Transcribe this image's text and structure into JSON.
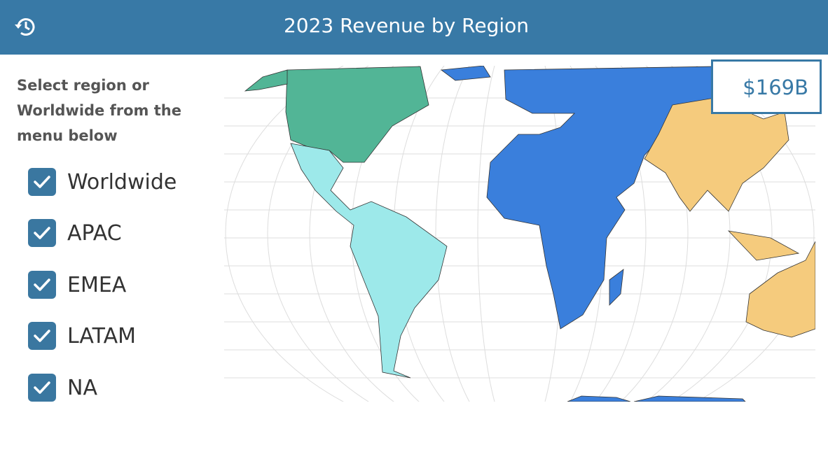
{
  "header": {
    "title": "2023 Revenue by Region"
  },
  "sidebar": {
    "instruction": "Select region or Worldwide from the menu below",
    "options": [
      {
        "label": "Worldwide",
        "checked": true
      },
      {
        "label": "APAC",
        "checked": true
      },
      {
        "label": "EMEA",
        "checked": true
      },
      {
        "label": "LATAM",
        "checked": true
      },
      {
        "label": "NA",
        "checked": true
      }
    ]
  },
  "kpi": {
    "value": "$169B"
  }
}
